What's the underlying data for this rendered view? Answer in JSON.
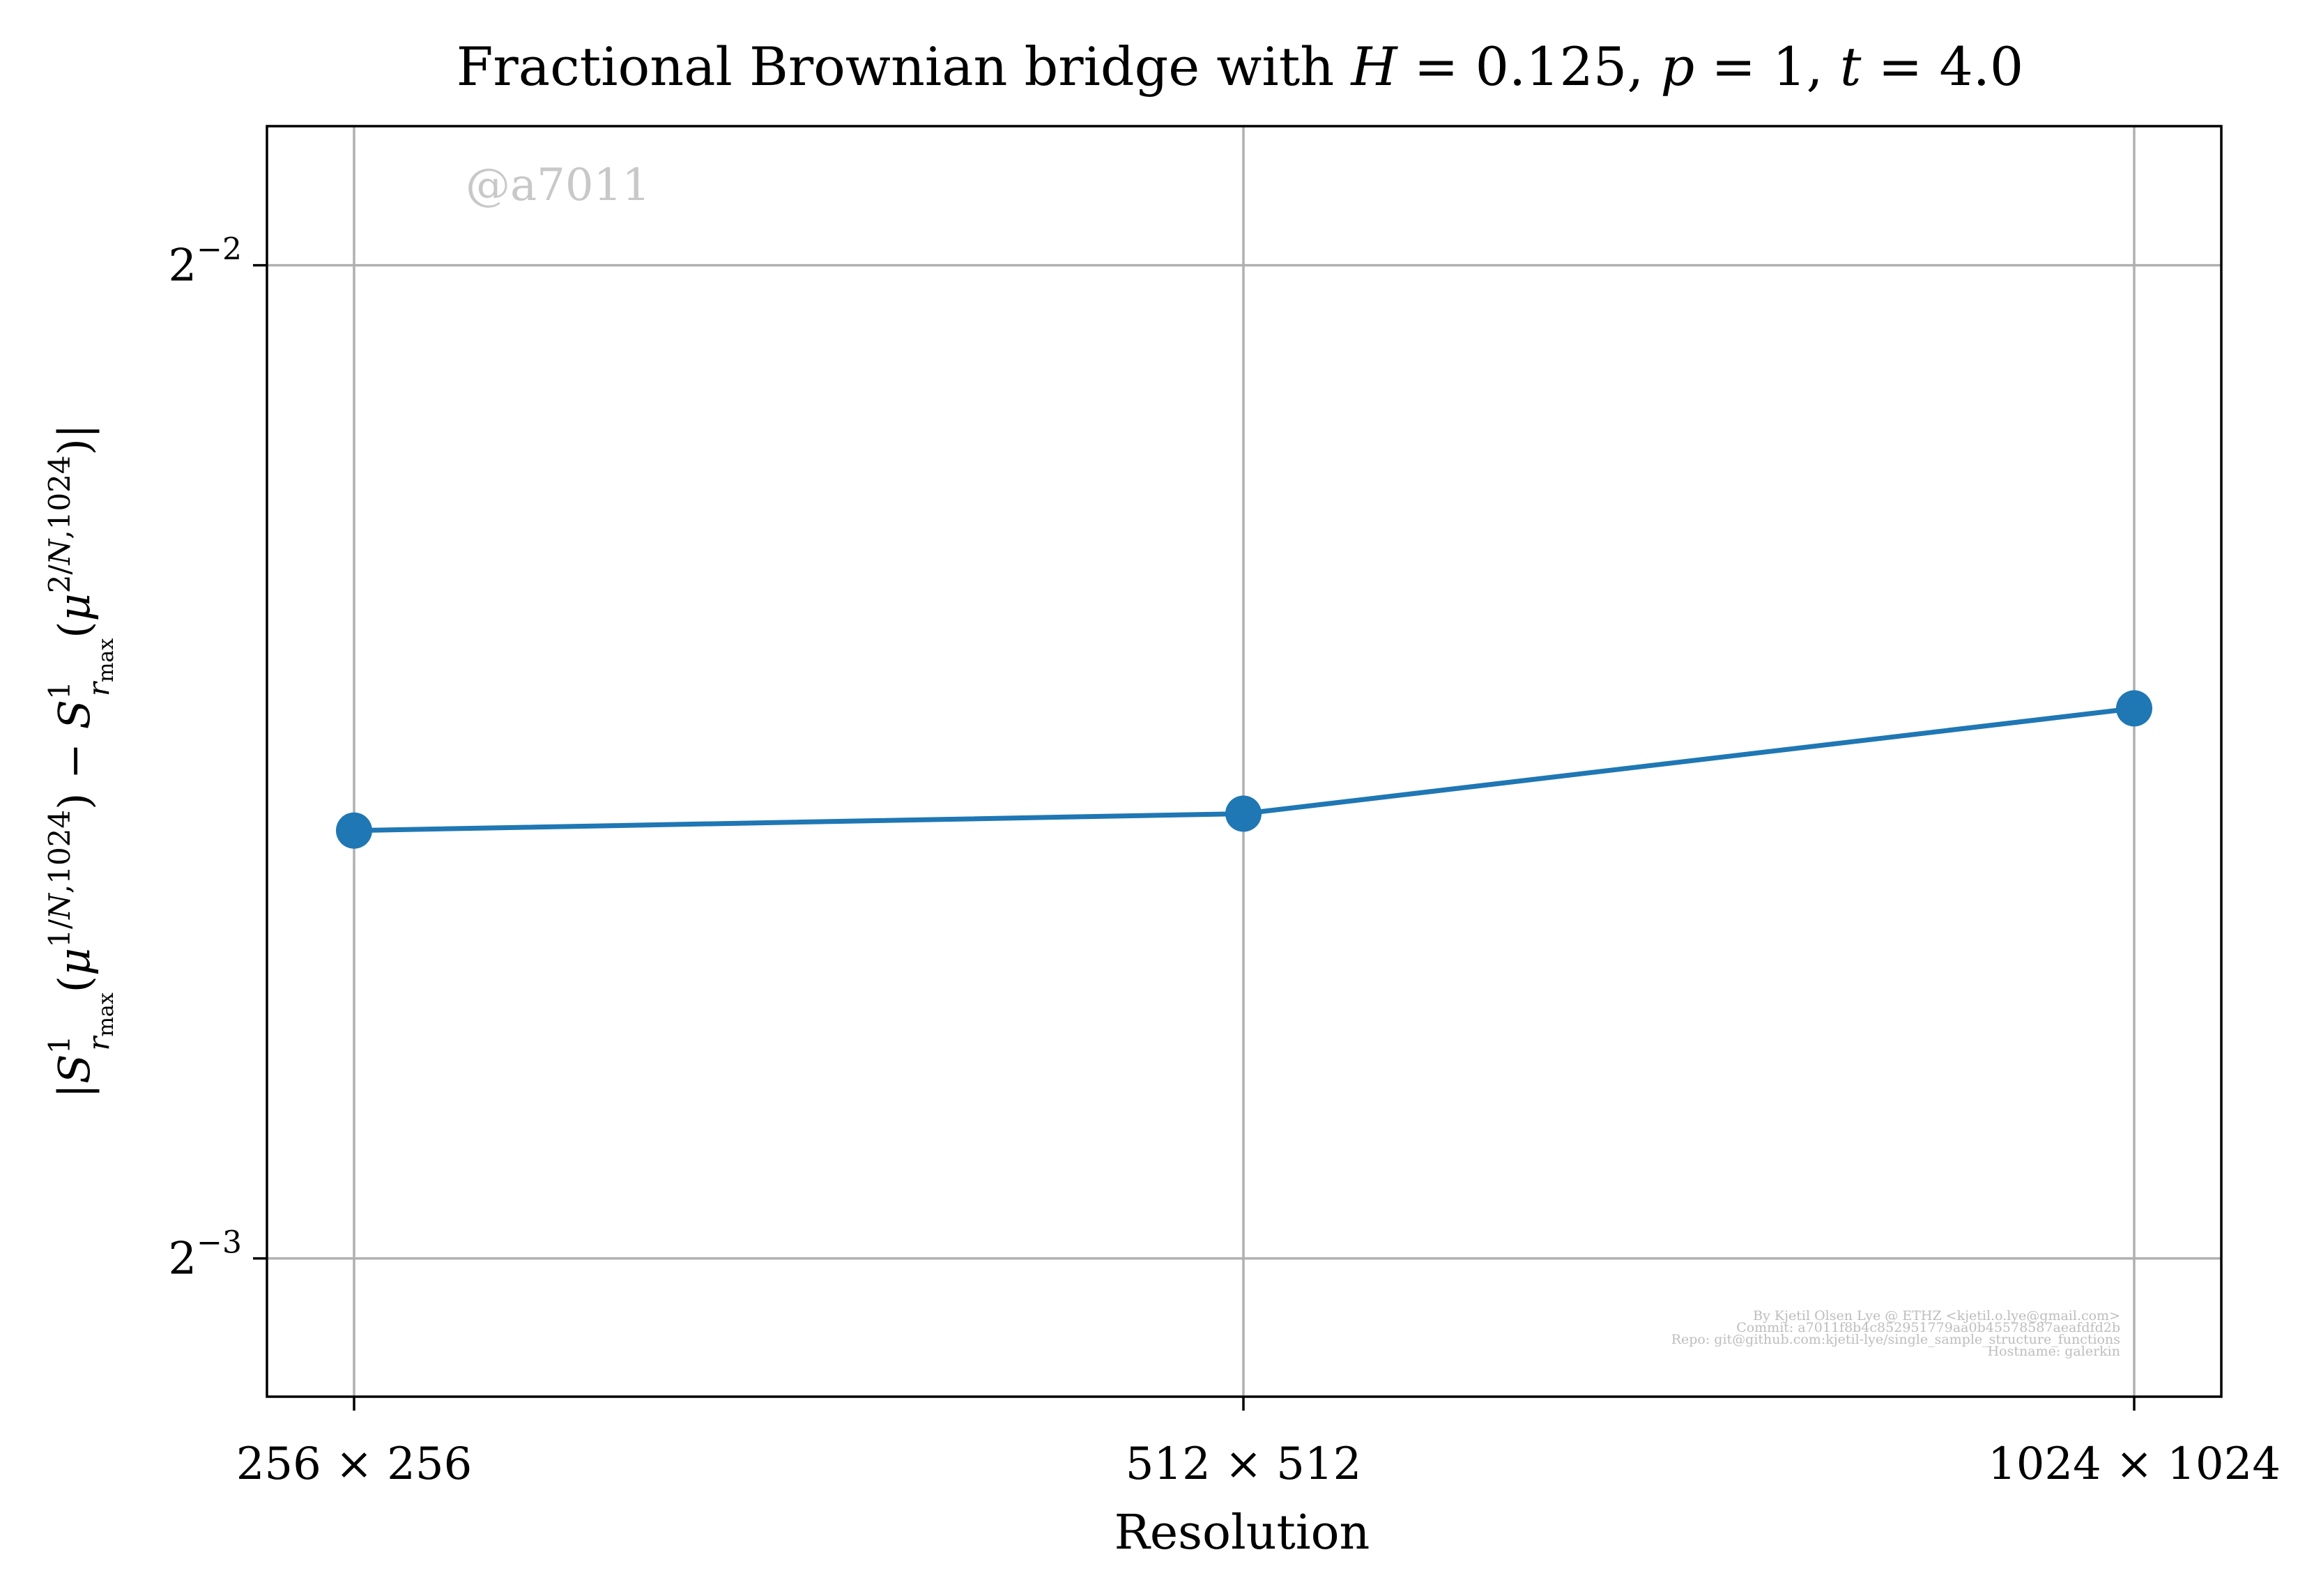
{
  "chart_data": {
    "type": "line",
    "title": "Fractional Brownian bridge with H = 0.125, p = 1, t = 4.0",
    "xlabel": "Resolution",
    "ylabel": "|S¹ r_max (μ^(1/N,1024)) − S¹ r_max (μ^(2/N,1024))|",
    "categories": [
      "256 × 256",
      "512 × 512",
      "1024 × 1024"
    ],
    "y_scale": "log2",
    "ylim": [
      0.1135,
      0.2755
    ],
    "y_ticks": [
      {
        "value": 0.25,
        "label_base": "2",
        "label_exp": "−2"
      },
      {
        "value": 0.125,
        "label_base": "2",
        "label_exp": "−3"
      }
    ],
    "grid": true,
    "series": [
      {
        "values": [
          0.1685,
          0.1705,
          0.1835
        ],
        "color": "#1f77b4"
      }
    ],
    "watermark": "@a7011",
    "footer": [
      "By Kjetil Olsen Lye @ ETHZ <kjetil.o.lye@gmail.com>",
      "Commit: a7011f8b4c852951779aa0b45578587aeafdfd2b",
      "Repo: git@github.com:kjetil-lye/single_sample_structure_functions",
      "Hostname: galerkin"
    ]
  }
}
